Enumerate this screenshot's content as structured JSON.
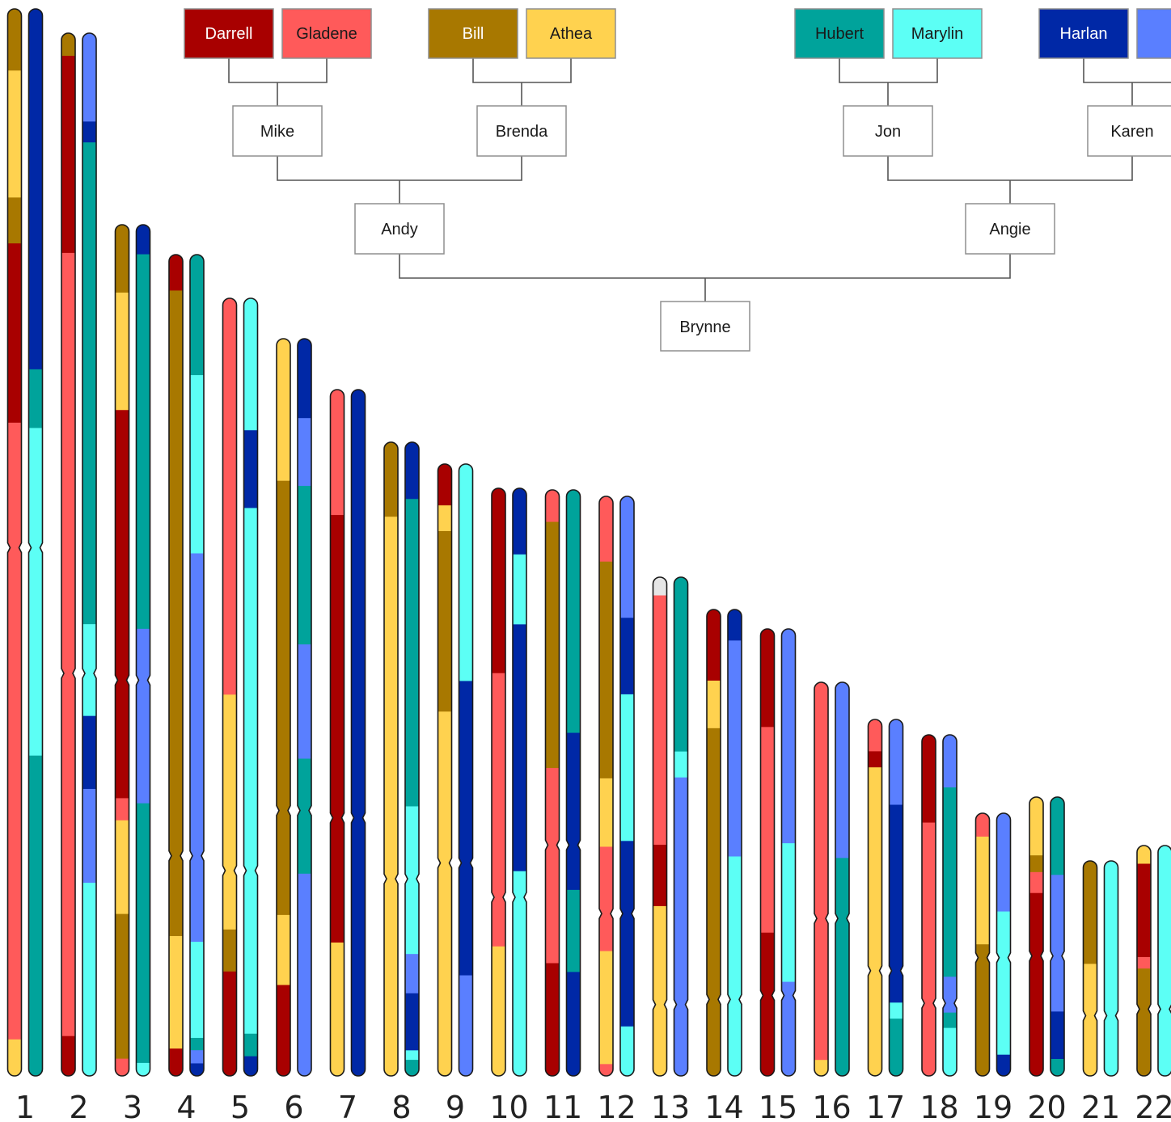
{
  "palette": {
    "Darrell": "#A80000",
    "Gladene": "#FF5A5A",
    "Bill": "#A87800",
    "Athea": "#FFD24F",
    "Hubert": "#00A39B",
    "Marylin": "#5CFFF5",
    "Harlan": "#0028A6",
    "Harlan_partner": "#5A7FFF",
    "unknown": "#E6E6E6",
    "node_box": "#ffffff",
    "line": "#555555"
  },
  "pedigree": {
    "grandparents": [
      {
        "key": "darrell",
        "name": "Darrell",
        "color_key": "Darrell",
        "text_color": "#ffffff"
      },
      {
        "key": "gladene",
        "name": "Gladene",
        "color_key": "Gladene",
        "text_color": "#1a1a1a"
      },
      {
        "key": "bill",
        "name": "Bill",
        "color_key": "Bill",
        "text_color": "#ffffff"
      },
      {
        "key": "athea",
        "name": "Athea",
        "color_key": "Athea",
        "text_color": "#1a1a1a"
      },
      {
        "key": "hubert",
        "name": "Hubert",
        "color_key": "Hubert",
        "text_color": "#1a1a1a"
      },
      {
        "key": "marylin",
        "name": "Marylin",
        "color_key": "Marylin",
        "text_color": "#1a1a1a"
      },
      {
        "key": "harlan",
        "name": "Harlan",
        "color_key": "Harlan",
        "text_color": "#ffffff"
      },
      {
        "key": "harlan-partner",
        "name": "",
        "color_key": "Harlan_partner",
        "text_color": "#ffffff"
      }
    ],
    "parents": [
      {
        "key": "mike",
        "name": "Mike"
      },
      {
        "key": "brenda",
        "name": "Brenda"
      },
      {
        "key": "jon",
        "name": "Jon"
      },
      {
        "key": "karen",
        "name": "Karen"
      }
    ],
    "children": [
      {
        "key": "andy",
        "name": "Andy"
      },
      {
        "key": "angie",
        "name": "Angie"
      }
    ],
    "proband": {
      "key": "brynne",
      "name": "Brynne"
    }
  },
  "chromosomes": [
    {
      "label": "1",
      "length": 1320,
      "centromere": 0.505,
      "paternal": [
        [
          "Bill",
          0,
          0.058
        ],
        [
          "Athea",
          0.058,
          0.177
        ],
        [
          "Bill",
          0.177,
          0.22
        ],
        [
          "Darrell",
          0.22,
          0.388
        ],
        [
          "Gladene",
          0.388,
          0.966
        ],
        [
          "Athea",
          0.966,
          1
        ]
      ],
      "maternal": [
        [
          "Harlan",
          0,
          0.338
        ],
        [
          "Hubert",
          0.338,
          0.393
        ],
        [
          "Marylin",
          0.393,
          0.7
        ],
        [
          "Hubert",
          0.7,
          1
        ]
      ]
    },
    {
      "label": "2",
      "length": 1290,
      "centromere": 0.614,
      "paternal": [
        [
          "Bill",
          0,
          0.022
        ],
        [
          "Darrell",
          0.022,
          0.211
        ],
        [
          "Gladene",
          0.211,
          0.962
        ],
        [
          "Darrell",
          0.962,
          1
        ]
      ],
      "maternal": [
        [
          "Harlan_partner",
          0,
          0.085
        ],
        [
          "Harlan",
          0.085,
          0.105
        ],
        [
          "Hubert",
          0.105,
          0.567
        ],
        [
          "Marylin",
          0.567,
          0.655
        ],
        [
          "Harlan",
          0.655,
          0.725
        ],
        [
          "Harlan_partner",
          0.725,
          0.815
        ],
        [
          "Marylin",
          0.815,
          1
        ]
      ]
    },
    {
      "label": "3",
      "length": 1053,
      "centromere": 0.535,
      "paternal": [
        [
          "Bill",
          0,
          0.08
        ],
        [
          "Athea",
          0.08,
          0.218
        ],
        [
          "Darrell",
          0.218,
          0.674
        ],
        [
          "Gladene",
          0.674,
          0.7
        ],
        [
          "Athea",
          0.7,
          0.81
        ],
        [
          "Bill",
          0.81,
          0.98
        ],
        [
          "Gladene",
          0.98,
          1
        ]
      ],
      "maternal": [
        [
          "Harlan",
          0,
          0.035
        ],
        [
          "Hubert",
          0.035,
          0.475
        ],
        [
          "Harlan_partner",
          0.475,
          0.68
        ],
        [
          "Hubert",
          0.68,
          0.985
        ],
        [
          "Marylin",
          0.985,
          1
        ]
      ]
    },
    {
      "label": "4",
      "length": 1016,
      "centromere": 0.732,
      "paternal": [
        [
          "Darrell",
          0,
          0.044
        ],
        [
          "Bill",
          0.044,
          0.83
        ],
        [
          "Athea",
          0.83,
          0.967
        ],
        [
          "Darrell",
          0.967,
          1
        ]
      ],
      "maternal": [
        [
          "Hubert",
          0,
          0.147
        ],
        [
          "Marylin",
          0.147,
          0.364
        ],
        [
          "Harlan_partner",
          0.364,
          0.837
        ],
        [
          "Marylin",
          0.837,
          0.954
        ],
        [
          "Hubert",
          0.954,
          0.969
        ],
        [
          "Harlan_partner",
          0.969,
          0.985
        ],
        [
          "Harlan",
          0.985,
          1
        ]
      ]
    },
    {
      "label": "5",
      "length": 962,
      "centromere": 0.736,
      "paternal": [
        [
          "Gladene",
          0,
          0.51
        ],
        [
          "Athea",
          0.51,
          0.812
        ],
        [
          "Bill",
          0.812,
          0.866
        ],
        [
          "Darrell",
          0.866,
          1
        ]
      ],
      "maternal": [
        [
          "Marylin",
          0,
          0.17
        ],
        [
          "Harlan",
          0.17,
          0.27
        ],
        [
          "Marylin",
          0.27,
          0.946
        ],
        [
          "Hubert",
          0.946,
          0.975
        ],
        [
          "Harlan",
          0.975,
          1
        ]
      ]
    },
    {
      "label": "6",
      "length": 912,
      "centromere": 0.64,
      "paternal": [
        [
          "Athea",
          0,
          0.193
        ],
        [
          "Bill",
          0.193,
          0.782
        ],
        [
          "Athea",
          0.782,
          0.877
        ],
        [
          "Darrell",
          0.877,
          1
        ]
      ],
      "maternal": [
        [
          "Harlan",
          0,
          0.108
        ],
        [
          "Harlan_partner",
          0.108,
          0.2
        ],
        [
          "Hubert",
          0.2,
          0.415
        ],
        [
          "Harlan_partner",
          0.415,
          0.57
        ],
        [
          "Hubert",
          0.57,
          0.726
        ],
        [
          "Harlan_partner",
          0.726,
          1
        ]
      ]
    },
    {
      "label": "7",
      "length": 849,
      "centromere": 0.624,
      "paternal": [
        [
          "Gladene",
          0,
          0.183
        ],
        [
          "Darrell",
          0.183,
          0.806
        ],
        [
          "Athea",
          0.806,
          1
        ]
      ],
      "maternal": [
        [
          "Harlan",
          0,
          1
        ]
      ]
    },
    {
      "label": "8",
      "length": 784,
      "centromere": 0.689,
      "paternal": [
        [
          "Bill",
          0,
          0.118
        ],
        [
          "Athea",
          0.118,
          1
        ]
      ],
      "maternal": [
        [
          "Harlan",
          0,
          0.09
        ],
        [
          "Hubert",
          0.09,
          0.575
        ],
        [
          "Marylin",
          0.575,
          0.808
        ],
        [
          "Harlan_partner",
          0.808,
          0.87
        ],
        [
          "Harlan",
          0.87,
          0.96
        ],
        [
          "Marylin",
          0.96,
          0.975
        ],
        [
          "Hubert",
          0.975,
          1
        ]
      ]
    },
    {
      "label": "9",
      "length": 757,
      "centromere": 0.652,
      "paternal": [
        [
          "Darrell",
          0,
          0.068
        ],
        [
          "Athea",
          0.068,
          0.11
        ],
        [
          "Bill",
          0.11,
          0.405
        ],
        [
          "Athea",
          0.405,
          1
        ]
      ],
      "maternal": [
        [
          "Marylin",
          0,
          0.355
        ],
        [
          "Harlan",
          0.355,
          0.836
        ],
        [
          "Harlan_partner",
          0.836,
          1
        ]
      ]
    },
    {
      "label": "10",
      "length": 727,
      "centromere": 0.696,
      "paternal": [
        [
          "Darrell",
          0,
          0.315
        ],
        [
          "Gladene",
          0.315,
          0.78
        ],
        [
          "Athea",
          0.78,
          1
        ]
      ],
      "maternal": [
        [
          "Harlan",
          0,
          0.113
        ],
        [
          "Marylin",
          0.113,
          0.232
        ],
        [
          "Harlan",
          0.232,
          0.652
        ],
        [
          "Marylin",
          0.652,
          1
        ]
      ]
    },
    {
      "label": "11",
      "length": 725,
      "centromere": 0.606,
      "paternal": [
        [
          "Gladene",
          0,
          0.055
        ],
        [
          "Bill",
          0.055,
          0.475
        ],
        [
          "Gladene",
          0.475,
          0.808
        ],
        [
          "Darrell",
          0.808,
          1
        ]
      ],
      "maternal": [
        [
          "Hubert",
          0,
          0.415
        ],
        [
          "Harlan",
          0.415,
          0.683
        ],
        [
          "Hubert",
          0.683,
          0.823
        ],
        [
          "Harlan",
          0.823,
          1
        ]
      ]
    },
    {
      "label": "12",
      "length": 717,
      "centromere": 0.72,
      "paternal": [
        [
          "Gladene",
          0,
          0.113
        ],
        [
          "Bill",
          0.113,
          0.487
        ],
        [
          "Athea",
          0.487,
          0.605
        ],
        [
          "Gladene",
          0.605,
          0.785
        ],
        [
          "Athea",
          0.785,
          0.98
        ],
        [
          "Gladene",
          0.98,
          1
        ]
      ],
      "maternal": [
        [
          "Harlan_partner",
          0,
          0.21
        ],
        [
          "Harlan",
          0.21,
          0.342
        ],
        [
          "Marylin",
          0.342,
          0.595
        ],
        [
          "Harlan",
          0.595,
          0.915
        ],
        [
          "Marylin",
          0.915,
          1
        ]
      ]
    },
    {
      "label": "13",
      "length": 617,
      "centromere": 0.857,
      "paternal": [
        [
          "unknown",
          0,
          0.037
        ],
        [
          "Gladene",
          0.037,
          0.537
        ],
        [
          "Darrell",
          0.537,
          0.66
        ],
        [
          "Athea",
          0.66,
          1
        ]
      ],
      "maternal": [
        [
          "Hubert",
          0,
          0.35
        ],
        [
          "Marylin",
          0.35,
          0.402
        ],
        [
          "Harlan_partner",
          0.402,
          1
        ]
      ]
    },
    {
      "label": "14",
      "length": 577,
      "centromere": 0.836,
      "paternal": [
        [
          "Darrell",
          0,
          0.153
        ],
        [
          "Athea",
          0.153,
          0.255
        ],
        [
          "Bill",
          0.255,
          1
        ]
      ],
      "maternal": [
        [
          "Harlan",
          0,
          0.067
        ],
        [
          "Harlan_partner",
          0.067,
          0.53
        ],
        [
          "Marylin",
          0.53,
          1
        ]
      ]
    },
    {
      "label": "15",
      "length": 553,
      "centromere": 0.82,
      "paternal": [
        [
          "Darrell",
          0,
          0.22
        ],
        [
          "Gladene",
          0.22,
          0.68
        ],
        [
          "Darrell",
          0.68,
          1
        ]
      ],
      "maternal": [
        [
          "Harlan_partner",
          0,
          0.48
        ],
        [
          "Marylin",
          0.48,
          0.79
        ],
        [
          "Harlan_partner",
          0.79,
          1
        ]
      ]
    },
    {
      "label": "16",
      "length": 487,
      "centromere": 0.6,
      "paternal": [
        [
          "Gladene",
          0,
          0.96
        ],
        [
          "Athea",
          0.96,
          1
        ]
      ],
      "maternal": [
        [
          "Harlan_partner",
          0,
          0.447
        ],
        [
          "Hubert",
          0.447,
          1
        ]
      ]
    },
    {
      "label": "17",
      "length": 441,
      "centromere": 0.705,
      "paternal": [
        [
          "Gladene",
          0,
          0.09
        ],
        [
          "Darrell",
          0.09,
          0.135
        ],
        [
          "Athea",
          0.135,
          1
        ]
      ],
      "maternal": [
        [
          "Harlan_partner",
          0,
          0.24
        ],
        [
          "Harlan",
          0.24,
          0.795
        ],
        [
          "Marylin",
          0.795,
          0.84
        ],
        [
          "Hubert",
          0.84,
          1
        ]
      ]
    },
    {
      "label": "18",
      "length": 422,
      "centromere": 0.787,
      "paternal": [
        [
          "Darrell",
          0,
          0.258
        ],
        [
          "Gladene",
          0.258,
          1
        ]
      ],
      "maternal": [
        [
          "Harlan_partner",
          0,
          0.155
        ],
        [
          "Hubert",
          0.155,
          0.71
        ],
        [
          "Harlan_partner",
          0.71,
          0.815
        ],
        [
          "Hubert",
          0.815,
          0.86
        ],
        [
          "Marylin",
          0.86,
          1
        ]
      ]
    },
    {
      "label": "19",
      "length": 325,
      "centromere": 0.55,
      "paternal": [
        [
          "Gladene",
          0,
          0.09
        ],
        [
          "Athea",
          0.09,
          0.5
        ],
        [
          "Bill",
          0.5,
          1
        ]
      ],
      "maternal": [
        [
          "Harlan_partner",
          0,
          0.375
        ],
        [
          "Marylin",
          0.375,
          0.92
        ],
        [
          "Harlan",
          0.92,
          1
        ]
      ]
    },
    {
      "label": "20",
      "length": 345,
      "centromere": 0.57,
      "paternal": [
        [
          "Athea",
          0,
          0.21
        ],
        [
          "Bill",
          0.21,
          0.27
        ],
        [
          "Gladene",
          0.27,
          0.345
        ],
        [
          "Darrell",
          0.345,
          1
        ]
      ],
      "maternal": [
        [
          "Hubert",
          0,
          0.28
        ],
        [
          "Harlan_partner",
          0.28,
          0.77
        ],
        [
          "Harlan",
          0.77,
          0.94
        ],
        [
          "Hubert",
          0.94,
          1
        ]
      ]
    },
    {
      "label": "21",
      "length": 266,
      "centromere": 0.72,
      "paternal": [
        [
          "Bill",
          0,
          0.48
        ],
        [
          "Athea",
          0.48,
          1
        ]
      ],
      "maternal": [
        [
          "Marylin",
          0,
          1
        ]
      ]
    },
    {
      "label": "22",
      "length": 285,
      "centromere": 0.71,
      "paternal": [
        [
          "Athea",
          0,
          0.08
        ],
        [
          "Darrell",
          0.08,
          0.485
        ],
        [
          "Gladene",
          0.485,
          0.535
        ],
        [
          "Bill",
          0.535,
          1
        ]
      ],
      "maternal": [
        [
          "Marylin",
          0,
          1
        ]
      ]
    }
  ]
}
